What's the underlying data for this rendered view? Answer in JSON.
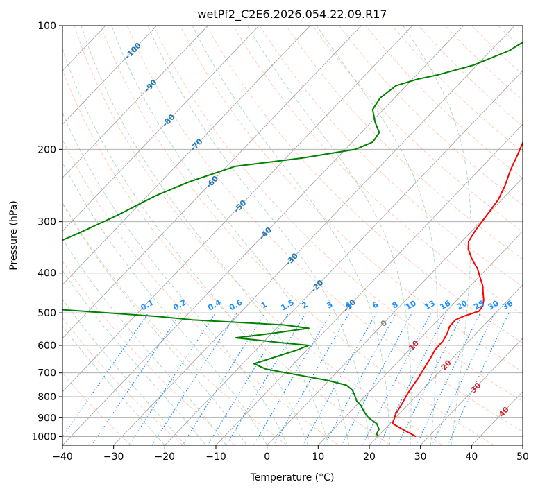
{
  "chart_data": {
    "type": "line",
    "title": "wetPf2_C2E6.2026.054.22.09.R17",
    "xlabel": "Temperature (°C)",
    "ylabel": "Pressure (hPa)",
    "xlim": [
      -40,
      50
    ],
    "ylim": [
      1050,
      100
    ],
    "y_scale": "log",
    "x_ticks": [
      -40,
      -30,
      -20,
      -10,
      0,
      10,
      20,
      30,
      40,
      50
    ],
    "y_ticks": [
      1000,
      900,
      800,
      700,
      600,
      500,
      400,
      300,
      200,
      100
    ],
    "grid": true,
    "series": [
      {
        "color": "#ff0000",
        "points": [
          [
            27.5,
            1000
          ],
          [
            24.5,
            970
          ],
          [
            20.5,
            930
          ],
          [
            19.3,
            880
          ],
          [
            18.6,
            830
          ],
          [
            17.9,
            790
          ],
          [
            17.5,
            760
          ],
          [
            17.0,
            720
          ],
          [
            16.3,
            680
          ],
          [
            15.6,
            640
          ],
          [
            15.0,
            615
          ],
          [
            14.9,
            585
          ],
          [
            14.3,
            560
          ],
          [
            13.5,
            540
          ],
          [
            13.4,
            520
          ],
          [
            14.3,
            510
          ],
          [
            16.4,
            495
          ],
          [
            16.1,
            480
          ],
          [
            15.2,
            465
          ],
          [
            14.0,
            450
          ],
          [
            12.4,
            430
          ],
          [
            10.3,
            410
          ],
          [
            8.1,
            390
          ],
          [
            5.3,
            370
          ],
          [
            2.7,
            350
          ],
          [
            1.3,
            335
          ],
          [
            0.6,
            315
          ],
          [
            0.0,
            290
          ],
          [
            -0.7,
            265
          ],
          [
            -2.0,
            245
          ],
          [
            -3.8,
            225
          ],
          [
            -5.4,
            205
          ],
          [
            -6.8,
            190
          ],
          [
            -7.4,
            180
          ],
          [
            -7.2,
            170
          ],
          [
            -5.9,
            150
          ],
          [
            -4.9,
            130
          ],
          [
            -4.4,
            115
          ],
          [
            -3.8,
            100
          ]
        ]
      },
      {
        "color": "#008000",
        "points": [
          [
            20.1,
            1000
          ],
          [
            19.3,
            985
          ],
          [
            18.9,
            960
          ],
          [
            17.4,
            930
          ],
          [
            14.7,
            900
          ],
          [
            12.7,
            870
          ],
          [
            10.9,
            840
          ],
          [
            9.3,
            820
          ],
          [
            7.6,
            790
          ],
          [
            6.3,
            770
          ],
          [
            4.3,
            750
          ],
          [
            -0.3,
            730
          ],
          [
            -6.6,
            710
          ],
          [
            -14.5,
            685
          ],
          [
            -17.8,
            665
          ],
          [
            -14.8,
            640
          ],
          [
            -11.9,
            615
          ],
          [
            -10.5,
            600
          ],
          [
            -17.0,
            590
          ],
          [
            -26.2,
            575
          ],
          [
            -19.5,
            560
          ],
          [
            -13.7,
            545
          ],
          [
            -19.2,
            535
          ],
          [
            -38.0,
            520
          ],
          [
            -45.6,
            510
          ],
          [
            -56.0,
            500
          ],
          [
            -66.8,
            490
          ],
          [
            -72.5,
            480
          ],
          [
            -92.4,
            400
          ],
          [
            -87.2,
            385
          ],
          [
            -83.7,
            365
          ],
          [
            -80.1,
            345
          ],
          [
            -76.5,
            320
          ],
          [
            -72.3,
            290
          ],
          [
            -68.5,
            260
          ],
          [
            -64.5,
            240
          ],
          [
            -58.4,
            220
          ],
          [
            -46.8,
            210
          ],
          [
            -38.0,
            200
          ],
          [
            -36.0,
            192
          ],
          [
            -36.5,
            182
          ],
          [
            -39.2,
            172
          ],
          [
            -42.1,
            160
          ],
          [
            -42.8,
            150
          ],
          [
            -42.0,
            140
          ],
          [
            -39.0,
            135
          ],
          [
            -36.0,
            132
          ],
          [
            -30.8,
            125
          ],
          [
            -26.4,
            115
          ],
          [
            -23.1,
            100
          ]
        ]
      }
    ],
    "isotherm_labels": [
      "-100",
      "-90",
      "-80",
      "-70",
      "-60",
      "-50",
      "-40",
      "-30",
      "-20",
      "-10",
      "0",
      "10",
      "20",
      "30",
      "40"
    ],
    "mixing_ratio_labels": [
      "0.1",
      "0.2",
      "0.4",
      "0.6",
      "1",
      "1.5",
      "2",
      "3",
      "4",
      "6",
      "8",
      "10",
      "13",
      "16",
      "20",
      "25",
      "30",
      "36"
    ]
  }
}
